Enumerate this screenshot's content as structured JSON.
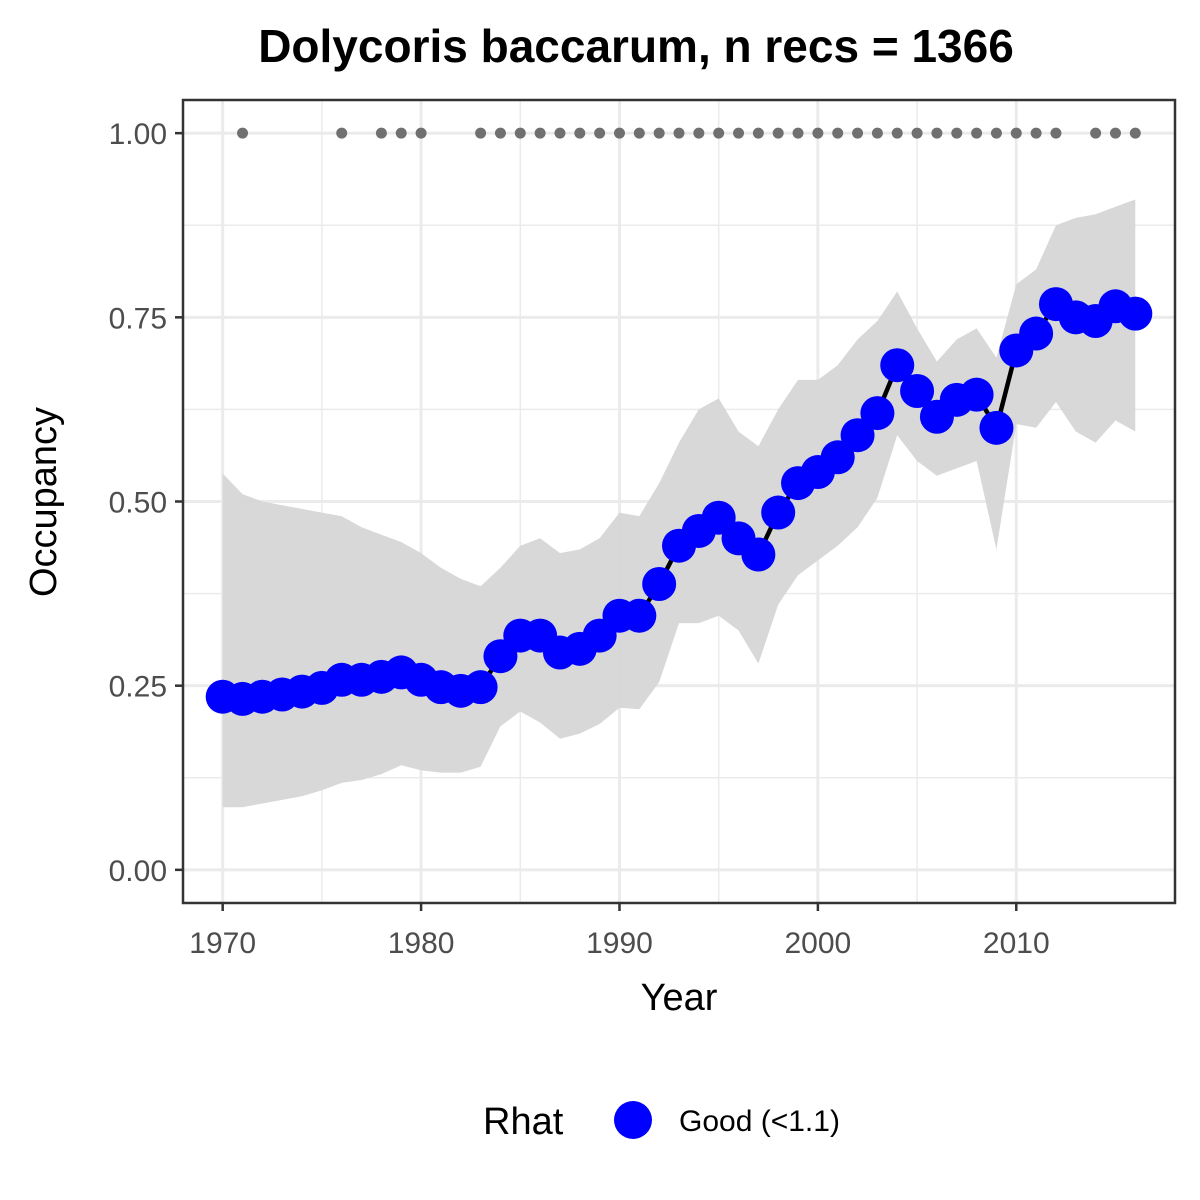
{
  "chart_data": {
    "type": "line",
    "title": "Dolycoris baccarum, n recs = 1366",
    "xlabel": "Year",
    "ylabel": "Occupancy",
    "xlim": [
      1968,
      2018
    ],
    "ylim": [
      -0.045,
      1.045
    ],
    "xticks": [
      1970,
      1980,
      1990,
      2000,
      2010
    ],
    "xtick_labels": [
      "1970",
      "1980",
      "1990",
      "2000",
      "2010"
    ],
    "yticks": [
      0,
      0.25,
      0.5,
      0.75,
      1
    ],
    "ytick_labels": [
      "0.00",
      "0.25",
      "0.50",
      "0.75",
      "1.00"
    ],
    "grid": true,
    "legend": {
      "title": "Rhat",
      "position": "bottom",
      "entries": [
        {
          "label": "Good (<1.1)",
          "color": "#0000ff"
        }
      ]
    },
    "colors": {
      "points": "#0000ff",
      "line": "#000000",
      "ribbon": "#d6d6d6",
      "records": "#707070",
      "grid": "#ebebeb",
      "panel_border": "#333333"
    },
    "x": [
      1970,
      1971,
      1972,
      1973,
      1974,
      1975,
      1976,
      1977,
      1978,
      1979,
      1980,
      1981,
      1982,
      1983,
      1984,
      1985,
      1986,
      1987,
      1988,
      1989,
      1990,
      1991,
      1992,
      1993,
      1994,
      1995,
      1996,
      1997,
      1998,
      1999,
      2000,
      2001,
      2002,
      2003,
      2004,
      2005,
      2006,
      2007,
      2008,
      2009,
      2010,
      2011,
      2012,
      2013,
      2014,
      2015,
      2016
    ],
    "series": [
      {
        "values": [
          0.235,
          0.232,
          0.235,
          0.238,
          0.242,
          0.247,
          0.258,
          0.258,
          0.262,
          0.268,
          0.258,
          0.248,
          0.243,
          0.248,
          0.29,
          0.318,
          0.318,
          0.295,
          0.3,
          0.318,
          0.345,
          0.345,
          0.388,
          0.44,
          0.46,
          0.478,
          0.45,
          0.428,
          0.485,
          0.525,
          0.54,
          0.56,
          0.59,
          0.62,
          0.685,
          0.65,
          0.615,
          0.638,
          0.645,
          0.6,
          0.705,
          0.728,
          0.768,
          0.75,
          0.745,
          0.765,
          0.755
        ],
        "lower": [
          0.085,
          0.085,
          0.09,
          0.095,
          0.1,
          0.108,
          0.118,
          0.122,
          0.13,
          0.142,
          0.135,
          0.132,
          0.132,
          0.14,
          0.195,
          0.215,
          0.2,
          0.178,
          0.185,
          0.198,
          0.22,
          0.218,
          0.255,
          0.335,
          0.335,
          0.345,
          0.325,
          0.28,
          0.36,
          0.4,
          0.42,
          0.44,
          0.465,
          0.505,
          0.59,
          0.555,
          0.535,
          0.545,
          0.555,
          0.435,
          0.605,
          0.6,
          0.635,
          0.595,
          0.58,
          0.61,
          0.595
        ],
        "upper": [
          0.538,
          0.51,
          0.5,
          0.495,
          0.49,
          0.485,
          0.48,
          0.465,
          0.455,
          0.445,
          0.43,
          0.41,
          0.395,
          0.385,
          0.41,
          0.44,
          0.45,
          0.43,
          0.435,
          0.45,
          0.485,
          0.48,
          0.525,
          0.58,
          0.625,
          0.64,
          0.595,
          0.575,
          0.625,
          0.665,
          0.665,
          0.685,
          0.72,
          0.745,
          0.785,
          0.735,
          0.69,
          0.72,
          0.735,
          0.695,
          0.795,
          0.815,
          0.875,
          0.885,
          0.89,
          0.9,
          0.91
        ]
      }
    ],
    "records_y": 1.0,
    "record_years": [
      1971,
      1976,
      1978,
      1979,
      1980,
      1983,
      1984,
      1985,
      1986,
      1987,
      1988,
      1989,
      1990,
      1991,
      1992,
      1993,
      1994,
      1995,
      1996,
      1997,
      1998,
      1999,
      2000,
      2001,
      2002,
      2003,
      2004,
      2005,
      2006,
      2007,
      2008,
      2009,
      2010,
      2011,
      2012,
      2014,
      2015,
      2016
    ]
  }
}
